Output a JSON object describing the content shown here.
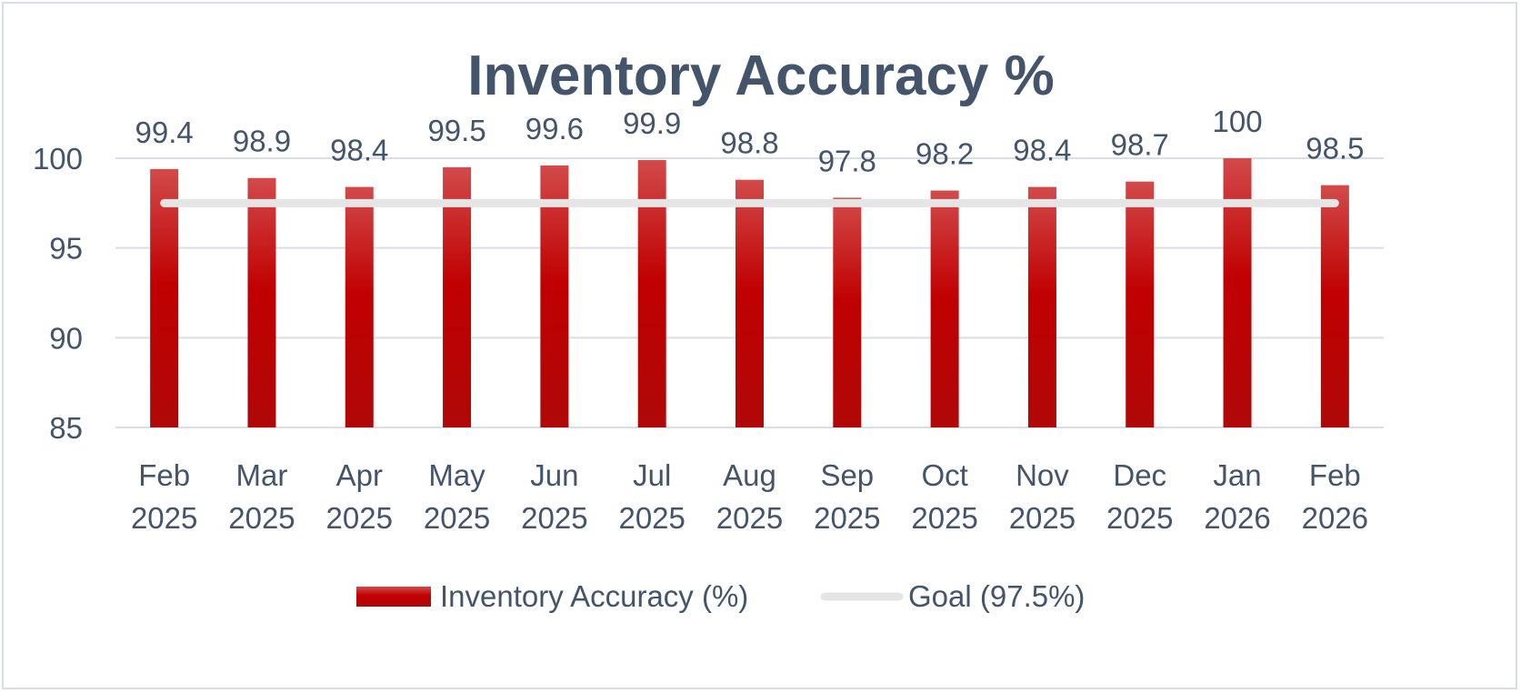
{
  "chart_data": {
    "type": "bar",
    "title": "Inventory Accuracy %",
    "categories": [
      [
        "Feb",
        "2025"
      ],
      [
        "Mar",
        "2025"
      ],
      [
        "Apr",
        "2025"
      ],
      [
        "May",
        "2025"
      ],
      [
        "Jun",
        "2025"
      ],
      [
        "Jul",
        "2025"
      ],
      [
        "Aug",
        "2025"
      ],
      [
        "Sep",
        "2025"
      ],
      [
        "Oct",
        "2025"
      ],
      [
        "Nov",
        "2025"
      ],
      [
        "Dec",
        "2025"
      ],
      [
        "Jan",
        "2026"
      ],
      [
        "Feb",
        "2026"
      ]
    ],
    "series": [
      {
        "name": "Inventory Accuracy (%)",
        "type": "bar",
        "values": [
          99.4,
          98.9,
          98.4,
          99.5,
          99.6,
          99.9,
          98.8,
          97.8,
          98.2,
          98.4,
          98.7,
          100,
          98.5
        ],
        "color": "#c00000"
      },
      {
        "name": "Goal (97.5%)",
        "type": "line",
        "values": [
          97.5,
          97.5,
          97.5,
          97.5,
          97.5,
          97.5,
          97.5,
          97.5,
          97.5,
          97.5,
          97.5,
          97.5,
          97.5
        ],
        "color": "#e5e5e5"
      }
    ],
    "ylim": [
      85,
      100
    ],
    "yticks": [
      "85",
      "90",
      "95",
      "100"
    ],
    "grid": true,
    "legend_position": "bottom"
  }
}
